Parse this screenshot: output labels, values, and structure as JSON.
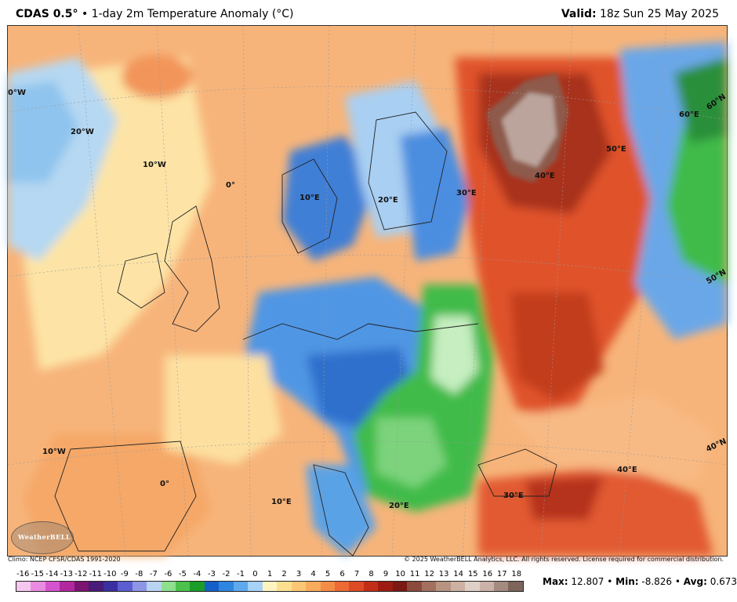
{
  "header": {
    "model": "CDAS 0.5°",
    "separator": "•",
    "product": "1-day 2m Temperature Anomaly (°C)",
    "valid_label": "Valid:",
    "valid_time": "18z Sun 25 May 2025"
  },
  "map": {
    "lon_labels": [
      "0°W",
      "20°W",
      "10°W",
      "0°",
      "10°E",
      "20°E",
      "30°E",
      "40°E",
      "50°E",
      "60°E",
      "60°N",
      "50°N",
      "40°N",
      "40°E",
      "30°E",
      "20°E",
      "10°E",
      "0°",
      "10°W"
    ],
    "logo_text": "WeatherBELL"
  },
  "footer": {
    "climo": "Climo: NCEP CFSR/CDAS 1991-2020",
    "copyright": "© 2025 WeatherBELL Analytics, LLC. All rights reserved. License required for commercial distribution."
  },
  "colorbar": {
    "labels": [
      "-16",
      "-15",
      "-14",
      "-13",
      "-12",
      "-11",
      "-10",
      "-9",
      "-8",
      "-7",
      "-6",
      "-5",
      "-4",
      "-3",
      "-2",
      "-1",
      "0",
      "1",
      "2",
      "3",
      "4",
      "5",
      "6",
      "7",
      "8",
      "9",
      "10",
      "11",
      "12",
      "13",
      "14",
      "15",
      "16",
      "17",
      "18"
    ],
    "colors": [
      "#f7c6ef",
      "#e98be0",
      "#d653cf",
      "#b1289e",
      "#7b1470",
      "#4a1a78",
      "#3a2fa0",
      "#5a5ed0",
      "#8f95e6",
      "#b9d3f2",
      "#8ee08e",
      "#4cc24c",
      "#1a9e2a",
      "#1560c8",
      "#2f86e0",
      "#5ea9ee",
      "#a6d2f6",
      "#fff4c0",
      "#fde08f",
      "#fcc774",
      "#f9ab5c",
      "#f38c46",
      "#ec6a34",
      "#dd4a24",
      "#c22e18",
      "#9d1b10",
      "#7a1a12",
      "#8a4a3c",
      "#a3705f",
      "#b99382",
      "#cdb2a3",
      "#ded0c6",
      "#cbb2a8",
      "#a58a80",
      "#7d655c"
    ],
    "stats": {
      "max_label": "Max:",
      "max": "12.807",
      "min_label": "Min:",
      "min": "-8.826",
      "avg_label": "Avg:",
      "avg": "0.673",
      "sep": "•"
    }
  }
}
